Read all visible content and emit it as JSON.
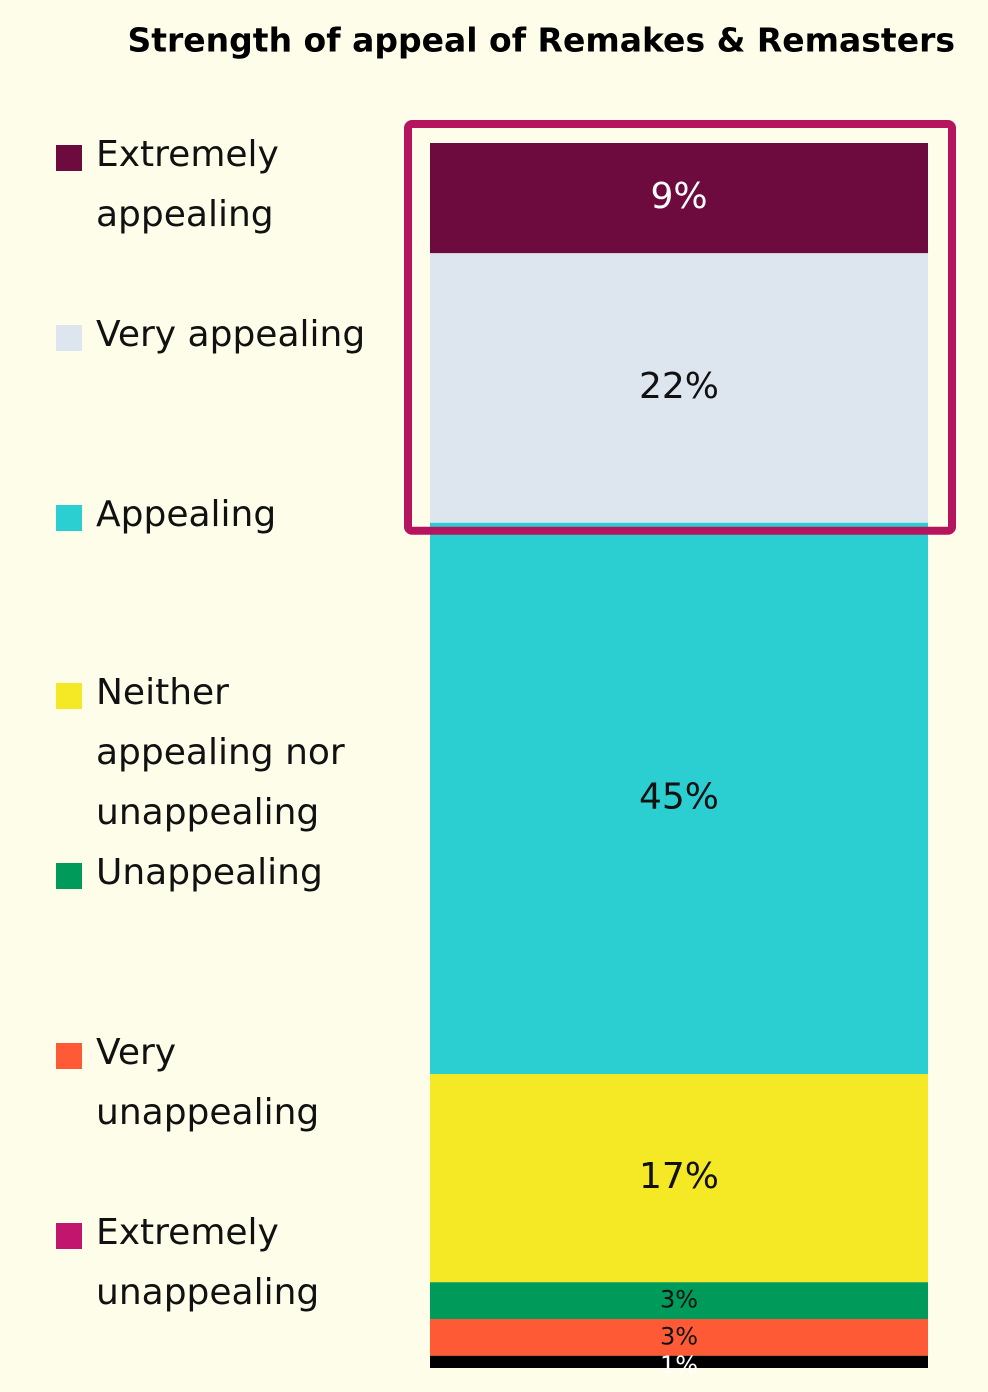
{
  "chart_data": {
    "type": "bar",
    "stacked": true,
    "title": "Strength of appeal of Remakes & Remasters",
    "categories": [
      null
    ],
    "series": [
      {
        "name": "Extremely appealing",
        "color": "#6d0a3e",
        "values": [
          9
        ],
        "value_labels": [
          "9%"
        ]
      },
      {
        "name": "Very appealing",
        "color": "#dde6ee",
        "values": [
          22
        ],
        "value_labels": [
          "22%"
        ]
      },
      {
        "name": "Appealing",
        "color": "#2ccfd1",
        "values": [
          45
        ],
        "value_labels": [
          "45%"
        ]
      },
      {
        "name": "Neither appealing nor unappealing",
        "color": "#f5e824",
        "values": [
          17
        ],
        "value_labels": [
          "17%"
        ]
      },
      {
        "name": "Unappealing",
        "color": "#009a5a",
        "values": [
          3
        ],
        "value_labels": [
          "3%"
        ]
      },
      {
        "name": "Very unappealing",
        "color": "#ff5a36",
        "values": [
          3
        ],
        "value_labels": [
          "3%"
        ]
      },
      {
        "name": "Extremely unappealing",
        "color": "#c2166e",
        "bar_color": "#000000",
        "values": [
          1
        ],
        "value_labels": [
          "1%"
        ]
      }
    ]
  }
}
